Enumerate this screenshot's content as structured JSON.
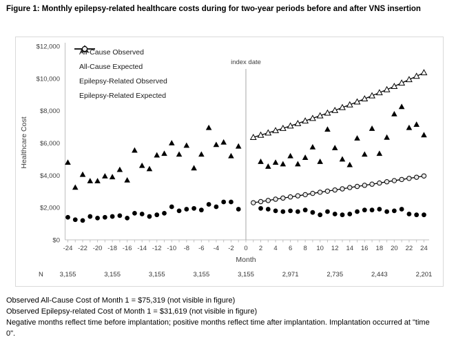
{
  "title": "Figure 1: Monthly epilepsy-related healthcare costs during for two-year periods before and after VNS insertion",
  "chart_data": {
    "type": "scatter",
    "xlabel": "Month",
    "ylabel": "Healthcare Cost",
    "xlim": [
      -26,
      26
    ],
    "ylim": [
      0,
      12000
    ],
    "grid": false,
    "legend_position": "top-left-inside",
    "annotation": "index date",
    "index_month": 0,
    "x_ticks": [
      -24,
      -22,
      -20,
      -18,
      -16,
      -14,
      -12,
      -10,
      -8,
      -6,
      -4,
      -2,
      0,
      2,
      4,
      6,
      8,
      10,
      12,
      14,
      16,
      18,
      20,
      22,
      24
    ],
    "y_ticks": [
      {
        "value": 0,
        "label": "$0"
      },
      {
        "value": 2000,
        "label": "$2,000"
      },
      {
        "value": 4000,
        "label": "$4,000"
      },
      {
        "value": 6000,
        "label": "$6,000"
      },
      {
        "value": 8000,
        "label": "$8,000"
      },
      {
        "value": 10000,
        "label": "$10,000"
      },
      {
        "value": 12000,
        "label": "$12,000"
      }
    ],
    "series": [
      {
        "name": "All-Cause Observed",
        "marker": "filled-triangle",
        "line": false,
        "points": [
          [
            -24,
            4800
          ],
          [
            -23,
            3250
          ],
          [
            -22,
            4050
          ],
          [
            -21,
            3650
          ],
          [
            -20,
            3650
          ],
          [
            -19,
            3950
          ],
          [
            -18,
            3900
          ],
          [
            -17,
            4350
          ],
          [
            -16,
            3700
          ],
          [
            -15,
            5550
          ],
          [
            -14,
            4600
          ],
          [
            -13,
            4400
          ],
          [
            -12,
            5250
          ],
          [
            -11,
            5350
          ],
          [
            -10,
            6000
          ],
          [
            -9,
            5300
          ],
          [
            -8,
            5850
          ],
          [
            -7,
            4450
          ],
          [
            -6,
            5300
          ],
          [
            -5,
            6950
          ],
          [
            -4,
            5900
          ],
          [
            -3,
            6050
          ],
          [
            -2,
            5200
          ],
          [
            -1,
            5800
          ],
          [
            2,
            4850
          ],
          [
            3,
            4550
          ],
          [
            4,
            4800
          ],
          [
            5,
            4700
          ],
          [
            6,
            5200
          ],
          [
            7,
            4700
          ],
          [
            8,
            5100
          ],
          [
            9,
            5750
          ],
          [
            10,
            4850
          ],
          [
            11,
            6850
          ],
          [
            12,
            5700
          ],
          [
            13,
            5000
          ],
          [
            14,
            4650
          ],
          [
            15,
            6300
          ],
          [
            16,
            5300
          ],
          [
            17,
            6900
          ],
          [
            18,
            5350
          ],
          [
            19,
            6350
          ],
          [
            20,
            7800
          ],
          [
            21,
            8250
          ],
          [
            22,
            6950
          ],
          [
            23,
            7150
          ],
          [
            24,
            6500
          ]
        ]
      },
      {
        "name": "All-Cause Expected",
        "marker": "open-triangle",
        "line": true,
        "points": [
          [
            1,
            6350
          ],
          [
            2,
            6490
          ],
          [
            3,
            6630
          ],
          [
            4,
            6770
          ],
          [
            5,
            6910
          ],
          [
            6,
            7060
          ],
          [
            7,
            7210
          ],
          [
            8,
            7370
          ],
          [
            9,
            7530
          ],
          [
            10,
            7690
          ],
          [
            11,
            7860
          ],
          [
            12,
            8020
          ],
          [
            13,
            8200
          ],
          [
            14,
            8370
          ],
          [
            15,
            8550
          ],
          [
            16,
            8740
          ],
          [
            17,
            8930
          ],
          [
            18,
            9120
          ],
          [
            19,
            9310
          ],
          [
            20,
            9510
          ],
          [
            21,
            9720
          ],
          [
            22,
            9930
          ],
          [
            23,
            10140
          ],
          [
            24,
            10360
          ]
        ]
      },
      {
        "name": "Epilepsy-Related Observed",
        "marker": "filled-circle",
        "line": false,
        "points": [
          [
            -24,
            1400
          ],
          [
            -23,
            1250
          ],
          [
            -22,
            1200
          ],
          [
            -21,
            1450
          ],
          [
            -20,
            1350
          ],
          [
            -19,
            1400
          ],
          [
            -18,
            1450
          ],
          [
            -17,
            1500
          ],
          [
            -16,
            1350
          ],
          [
            -15,
            1650
          ],
          [
            -14,
            1600
          ],
          [
            -13,
            1450
          ],
          [
            -12,
            1550
          ],
          [
            -11,
            1650
          ],
          [
            -10,
            2050
          ],
          [
            -9,
            1800
          ],
          [
            -8,
            1900
          ],
          [
            -7,
            1950
          ],
          [
            -6,
            1850
          ],
          [
            -5,
            2200
          ],
          [
            -4,
            2050
          ],
          [
            -3,
            2350
          ],
          [
            -2,
            2350
          ],
          [
            -1,
            1900
          ],
          [
            2,
            1950
          ],
          [
            3,
            1900
          ],
          [
            4,
            1800
          ],
          [
            5,
            1750
          ],
          [
            6,
            1800
          ],
          [
            7,
            1750
          ],
          [
            8,
            1850
          ],
          [
            9,
            1700
          ],
          [
            10,
            1550
          ],
          [
            11,
            1750
          ],
          [
            12,
            1600
          ],
          [
            13,
            1550
          ],
          [
            14,
            1600
          ],
          [
            15,
            1750
          ],
          [
            16,
            1850
          ],
          [
            17,
            1850
          ],
          [
            18,
            1900
          ],
          [
            19,
            1750
          ],
          [
            20,
            1800
          ],
          [
            21,
            1900
          ],
          [
            22,
            1600
          ],
          [
            23,
            1550
          ],
          [
            24,
            1550
          ]
        ]
      },
      {
        "name": "Epilepsy-Related Expected",
        "marker": "open-circle",
        "line": true,
        "points": [
          [
            1,
            2300
          ],
          [
            2,
            2370
          ],
          [
            3,
            2440
          ],
          [
            4,
            2520
          ],
          [
            5,
            2590
          ],
          [
            6,
            2660
          ],
          [
            7,
            2730
          ],
          [
            8,
            2800
          ],
          [
            9,
            2880
          ],
          [
            10,
            2950
          ],
          [
            11,
            3020
          ],
          [
            12,
            3090
          ],
          [
            13,
            3160
          ],
          [
            14,
            3240
          ],
          [
            15,
            3310
          ],
          [
            16,
            3380
          ],
          [
            17,
            3450
          ],
          [
            18,
            3520
          ],
          [
            19,
            3600
          ],
          [
            20,
            3670
          ],
          [
            21,
            3740
          ],
          [
            22,
            3810
          ],
          [
            23,
            3880
          ],
          [
            24,
            3960
          ]
        ]
      }
    ],
    "n_row": {
      "label": "N",
      "months": [
        -24,
        -18,
        -12,
        -6,
        0,
        6,
        12,
        18,
        24
      ],
      "values": [
        "3,155",
        "3,155",
        "3,155",
        "3,155",
        "3,155",
        "2,971",
        "2,735",
        "2,443",
        "2,201"
      ]
    }
  },
  "footnotes": [
    "Observed All-Cause Cost of Month 1 = $75,319 (not visible in figure)",
    "Observed Epilepsy-related Cost of Month 1 = $31,619 (not visible in figure)",
    "Negative months reflect time before implantation; positive months reflect time after implantation. Implantation occurred at \"time 0\"."
  ],
  "colors": {
    "marker": "#000000",
    "axis_line": "#bfbfbf",
    "index_line": "#a6a6a6",
    "tick_text": "#404040",
    "chart_border": "#d9d9d9"
  }
}
